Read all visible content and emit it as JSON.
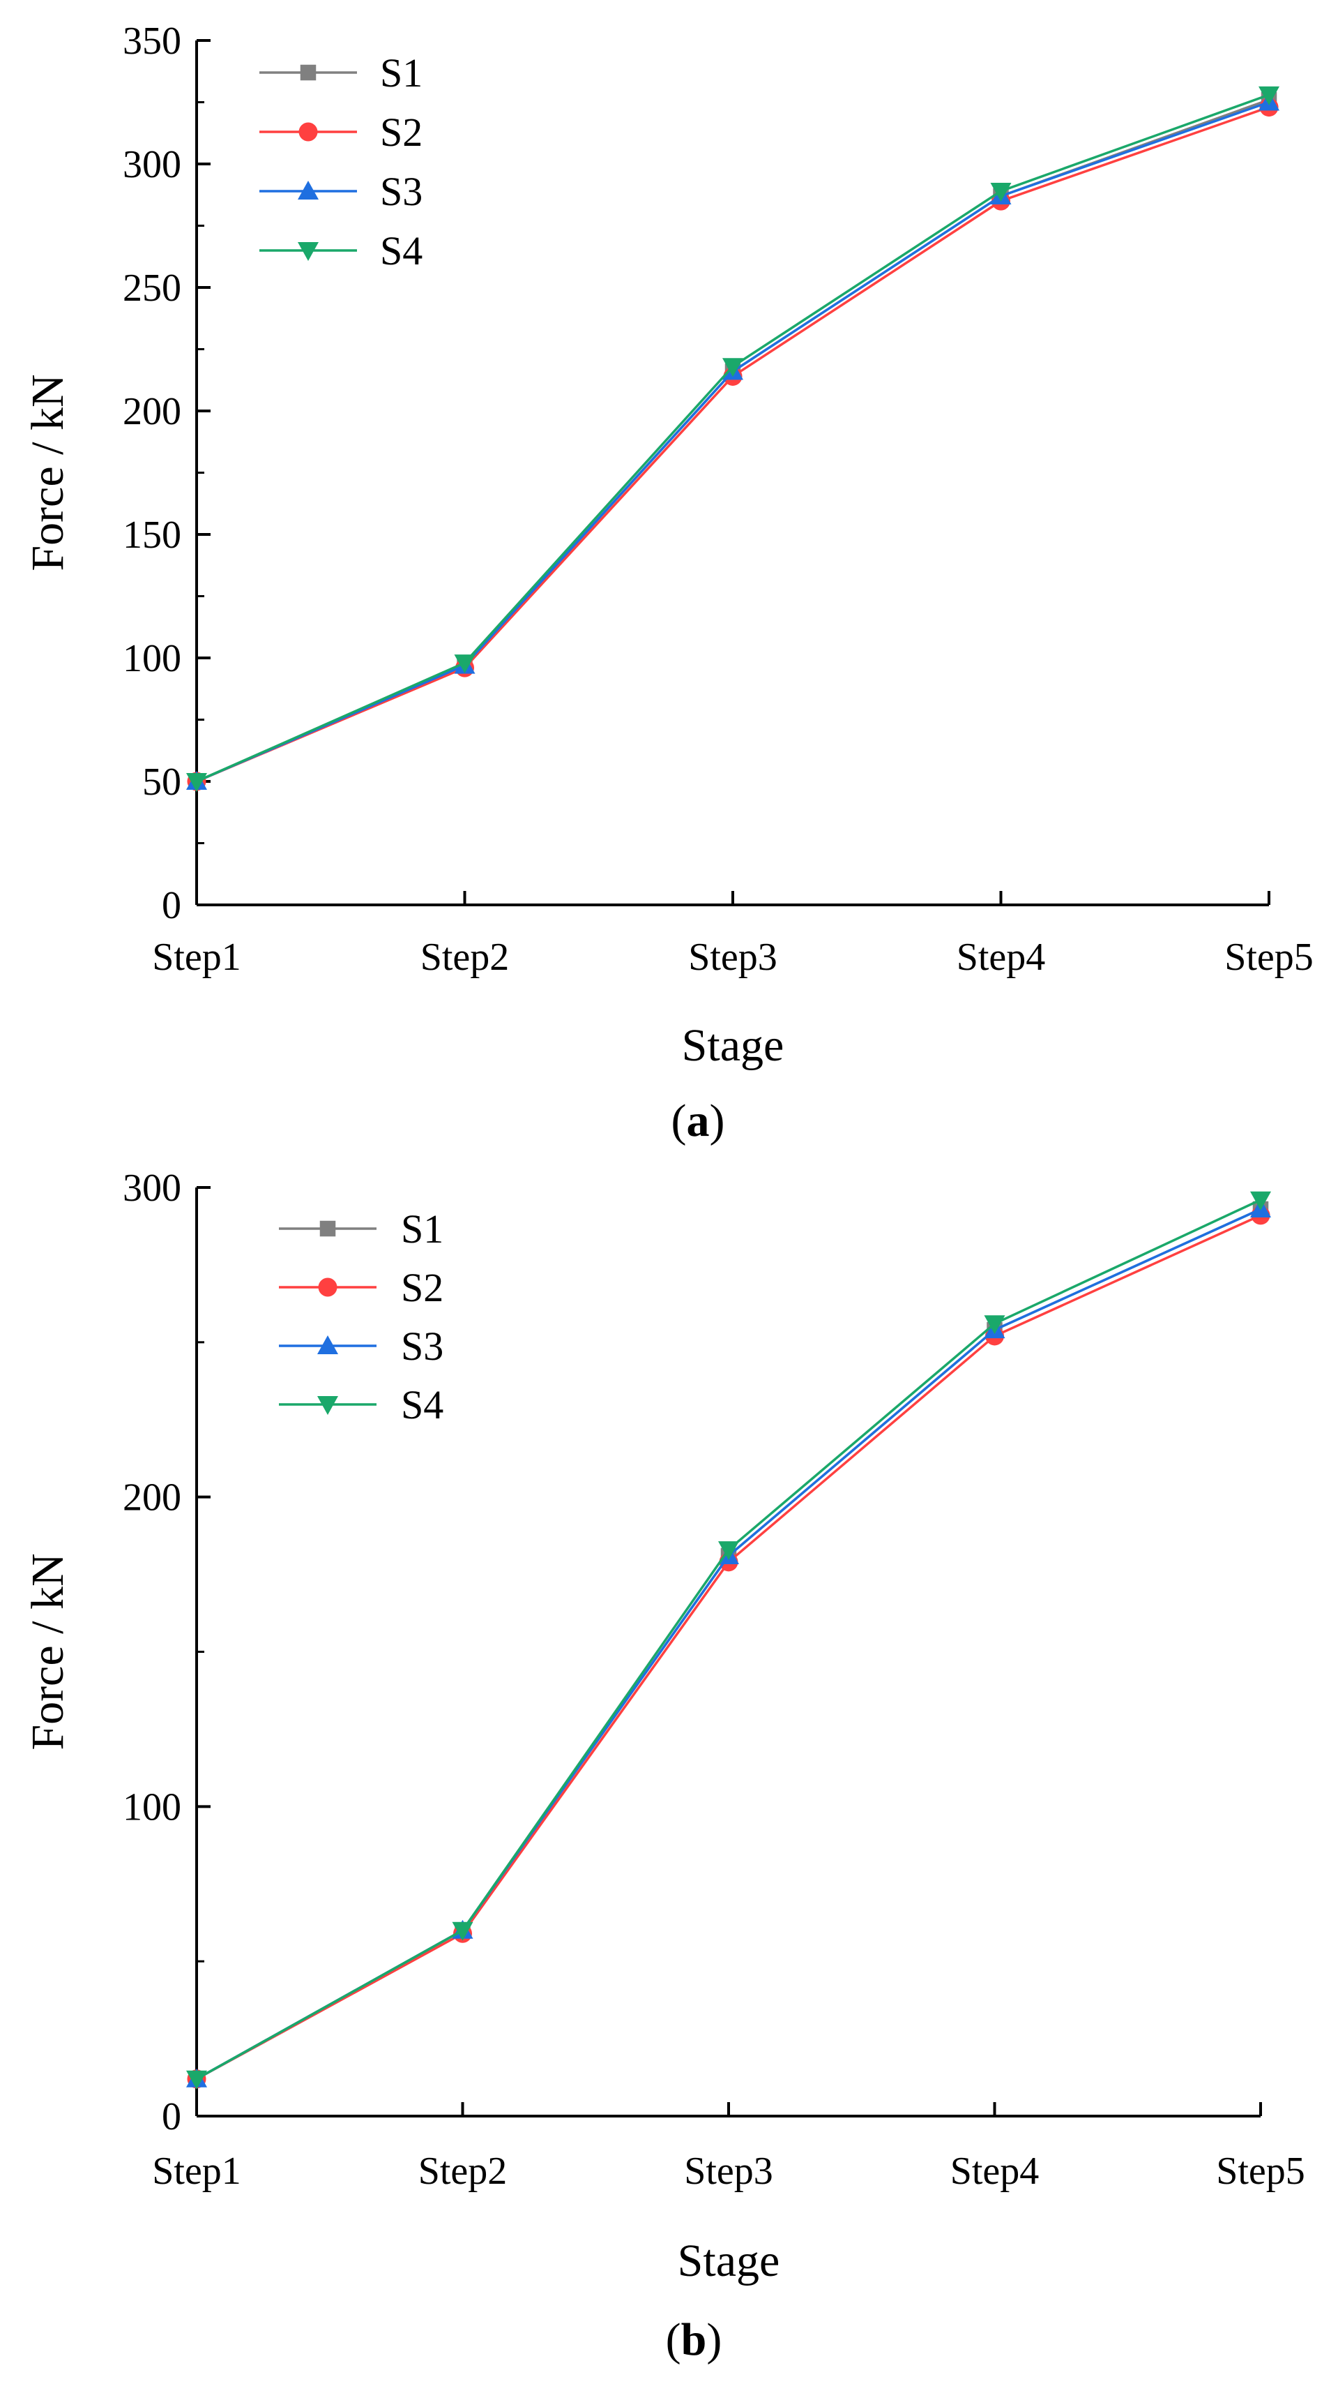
{
  "chart_data": [
    {
      "type": "line",
      "panel_label": "a",
      "categories": [
        "Step1",
        "Step2",
        "Step3",
        "Step4",
        "Step5"
      ],
      "xlabel": "Stage",
      "ylabel": "Force / kN",
      "ylim": [
        0,
        350
      ],
      "yticks": [
        0,
        50,
        100,
        150,
        200,
        250,
        300,
        350
      ],
      "ytick_labels": [
        "0",
        "50",
        "100",
        "150",
        "200",
        "250",
        "300",
        "350"
      ],
      "minor_step": 25,
      "legend_position": "top-left",
      "series": [
        {
          "name": "S1",
          "marker": "square",
          "color": "#808080",
          "values": [
            50,
            97,
            216,
            287,
            326
          ]
        },
        {
          "name": "S2",
          "marker": "circle",
          "color": "#ff4040",
          "values": [
            50,
            96,
            214,
            285,
            323
          ]
        },
        {
          "name": "S3",
          "marker": "triangle-up",
          "color": "#1f6fe0",
          "values": [
            50,
            97,
            216,
            287,
            325
          ]
        },
        {
          "name": "S4",
          "marker": "triangle-down",
          "color": "#1aa86a",
          "values": [
            50,
            98,
            218,
            289,
            328
          ]
        }
      ]
    },
    {
      "type": "line",
      "panel_label": "b",
      "categories": [
        "Step1",
        "Step2",
        "Step3",
        "Step4",
        "Step5"
      ],
      "xlabel": "Stage",
      "ylabel": "Force / kN",
      "ylim": [
        0,
        300
      ],
      "yticks": [
        0,
        100,
        200,
        300
      ],
      "ytick_labels": [
        "0",
        "100",
        "200",
        "300"
      ],
      "minor_step": 50,
      "legend_position": "top-left",
      "series": [
        {
          "name": "S1",
          "marker": "square",
          "color": "#808080",
          "values": [
            12,
            60,
            181,
            254,
            293
          ]
        },
        {
          "name": "S2",
          "marker": "circle",
          "color": "#ff4040",
          "values": [
            12,
            59,
            179,
            252,
            291
          ]
        },
        {
          "name": "S3",
          "marker": "triangle-up",
          "color": "#1f6fe0",
          "values": [
            12,
            60,
            181,
            254,
            293
          ]
        },
        {
          "name": "S4",
          "marker": "triangle-down",
          "color": "#1aa86a",
          "values": [
            12,
            60,
            183,
            256,
            296
          ]
        }
      ]
    }
  ]
}
